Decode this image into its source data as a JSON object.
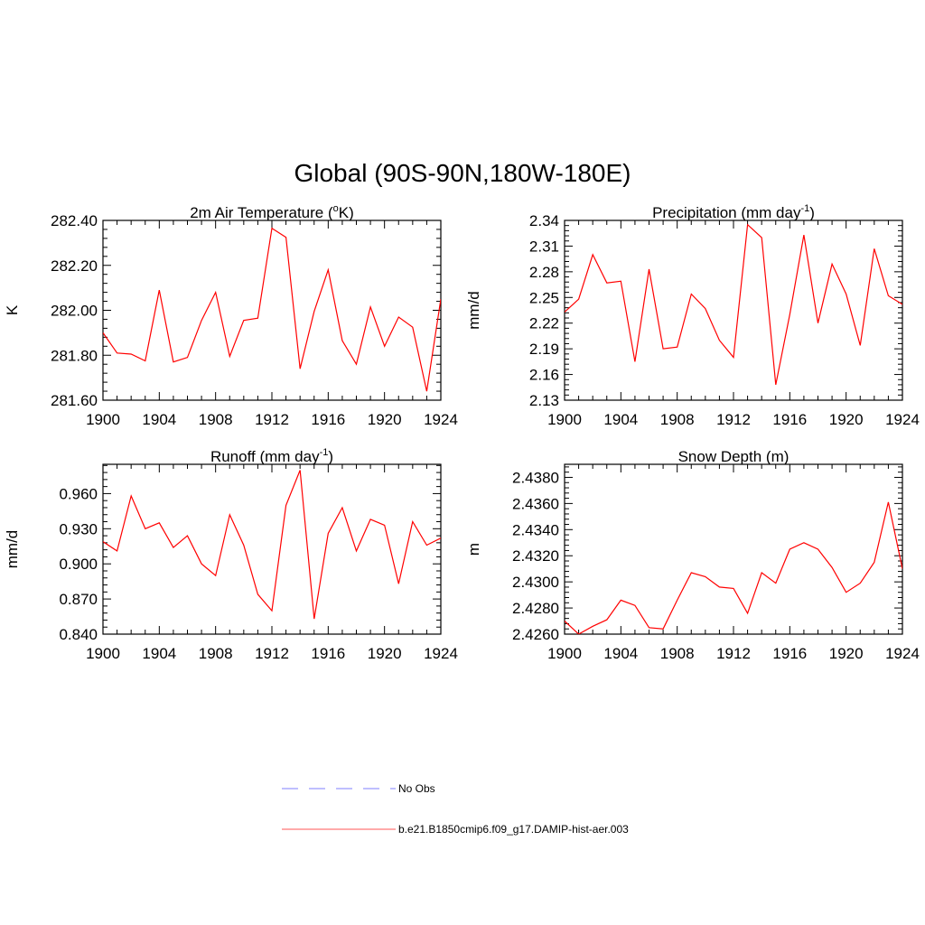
{
  "figure": {
    "title": "Global (90S-90N,180W-180E)"
  },
  "legend": {
    "entries": [
      {
        "label": "No Obs",
        "color": "#9999ff",
        "dash": true
      },
      {
        "label": "b.e21.B1850cmip6.f09_g17.DAMIP-hist-aer.003",
        "color": "#ff7777",
        "dash": false
      }
    ]
  },
  "chart_data": [
    {
      "type": "line",
      "title": "2m Air Temperature (",
      "title_sup": "o",
      "title_after": "K)",
      "ylabel": "K",
      "xlim": [
        1900,
        1924
      ],
      "ylim": [
        281.6,
        282.4
      ],
      "xticks": [
        "1900",
        "1904",
        "1908",
        "1912",
        "1916",
        "1920",
        "1924"
      ],
      "yticks": [
        "281.60",
        "281.80",
        "282.00",
        "282.20",
        "282.40"
      ],
      "series": [
        {
          "color": "#ff0000",
          "x": [
            1900,
            1901,
            1902,
            1903,
            1904,
            1905,
            1906,
            1907,
            1908,
            1909,
            1910,
            1911,
            1912,
            1913,
            1914,
            1915,
            1916,
            1917,
            1918,
            1919,
            1920,
            1921,
            1922,
            1923,
            1924
          ],
          "values": [
            281.9,
            281.81,
            281.805,
            281.775,
            282.09,
            281.77,
            281.79,
            281.955,
            282.08,
            281.795,
            281.955,
            281.965,
            282.365,
            282.325,
            281.74,
            281.995,
            282.18,
            281.865,
            281.76,
            282.015,
            281.84,
            281.97,
            281.925,
            281.64,
            282.05
          ]
        }
      ]
    },
    {
      "type": "line",
      "title": "Precipitation (mm day",
      "title_sup": "-1",
      "title_after": ")",
      "ylabel": "mm/d",
      "xlim": [
        1900,
        1924
      ],
      "ylim": [
        2.13,
        2.34
      ],
      "xticks": [
        "1900",
        "1904",
        "1908",
        "1912",
        "1916",
        "1920",
        "1924"
      ],
      "yticks": [
        "2.13",
        "2.16",
        "2.19",
        "2.22",
        "2.25",
        "2.28",
        "2.31",
        "2.34"
      ],
      "series": [
        {
          "color": "#ff0000",
          "x": [
            1900,
            1901,
            1902,
            1903,
            1904,
            1905,
            1906,
            1907,
            1908,
            1909,
            1910,
            1911,
            1912,
            1913,
            1914,
            1915,
            1916,
            1917,
            1918,
            1919,
            1920,
            1921,
            1922,
            1923,
            1924
          ],
          "values": [
            2.233,
            2.248,
            2.3,
            2.267,
            2.269,
            2.175,
            2.283,
            2.19,
            2.192,
            2.254,
            2.237,
            2.2,
            2.18,
            2.335,
            2.32,
            2.148,
            2.23,
            2.323,
            2.22,
            2.289,
            2.254,
            2.194,
            2.307,
            2.252,
            2.242
          ]
        }
      ]
    },
    {
      "type": "line",
      "title": "Runoff (mm day",
      "title_sup": "-1",
      "title_after": ")",
      "ylabel": "mm/d",
      "xlim": [
        1900,
        1924
      ],
      "ylim": [
        0.84,
        0.985
      ],
      "xticks": [
        "1900",
        "1904",
        "1908",
        "1912",
        "1916",
        "1920",
        "1924"
      ],
      "yticks": [
        "0.840",
        "0.870",
        "0.900",
        "0.930",
        "0.960"
      ],
      "series": [
        {
          "color": "#ff0000",
          "x": [
            1900,
            1901,
            1902,
            1903,
            1904,
            1905,
            1906,
            1907,
            1908,
            1909,
            1910,
            1911,
            1912,
            1913,
            1914,
            1915,
            1916,
            1917,
            1918,
            1919,
            1920,
            1921,
            1922,
            1923,
            1924
          ],
          "values": [
            0.919,
            0.911,
            0.958,
            0.93,
            0.935,
            0.914,
            0.924,
            0.9,
            0.89,
            0.942,
            0.916,
            0.874,
            0.86,
            0.95,
            0.98,
            0.853,
            0.926,
            0.948,
            0.911,
            0.938,
            0.933,
            0.883,
            0.936,
            0.916,
            0.922
          ]
        }
      ]
    },
    {
      "type": "line",
      "title": "Snow Depth (m)",
      "title_sup": "",
      "title_after": "",
      "ylabel": "m",
      "xlim": [
        1900,
        1924
      ],
      "ylim": [
        2.426,
        2.439
      ],
      "xticks": [
        "1900",
        "1904",
        "1908",
        "1912",
        "1916",
        "1920",
        "1924"
      ],
      "yticks": [
        "2.4260",
        "2.4280",
        "2.4300",
        "2.4320",
        "2.4340",
        "2.4360",
        "2.4380"
      ],
      "series": [
        {
          "color": "#ff0000",
          "x": [
            1900,
            1901,
            1902,
            1903,
            1904,
            1905,
            1906,
            1907,
            1908,
            1909,
            1910,
            1911,
            1912,
            1913,
            1914,
            1915,
            1916,
            1917,
            1918,
            1919,
            1920,
            1921,
            1922,
            1923,
            1924
          ],
          "values": [
            2.427,
            2.426,
            2.4266,
            2.4271,
            2.4286,
            2.4282,
            2.4265,
            2.4264,
            2.4286,
            2.4307,
            2.4304,
            2.4296,
            2.4295,
            2.4276,
            2.4307,
            2.4299,
            2.4325,
            2.433,
            2.4325,
            2.4311,
            2.4292,
            2.4299,
            2.4315,
            2.4361,
            2.431
          ]
        }
      ]
    }
  ]
}
